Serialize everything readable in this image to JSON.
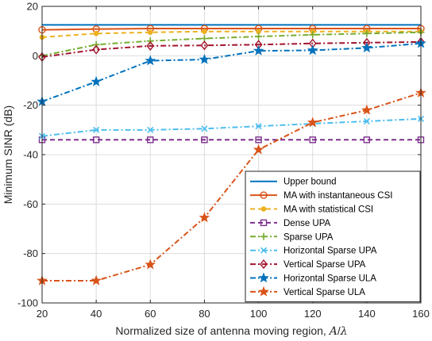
{
  "chart_data": {
    "type": "line",
    "xlabel": "Normalized size of antenna moving region, A/λ",
    "ylabel": "Minimum SINR (dB)",
    "xlim": [
      20,
      160
    ],
    "ylim": [
      -100,
      20
    ],
    "grid": true,
    "legend_position": "bottom-right",
    "x": [
      20,
      40,
      60,
      80,
      100,
      120,
      140,
      160
    ],
    "xticks": [
      "20",
      "40",
      "60",
      "80",
      "100",
      "120",
      "140",
      "160"
    ],
    "yticks": [
      "20",
      "0",
      "-20",
      "-40",
      "-60",
      "-80",
      "-100"
    ],
    "series": [
      {
        "name": "Upper bound",
        "color": "#0072bd",
        "dash": "solid",
        "marker": "none",
        "values": [
          12.5,
          12.5,
          12.5,
          12.5,
          12.5,
          12.5,
          12.5,
          12.5
        ]
      },
      {
        "name": "MA with instantaneous CSI",
        "color": "#d95319",
        "dash": "solid",
        "marker": "circle",
        "values": [
          10.5,
          10.8,
          11.0,
          11.0,
          11.0,
          11.0,
          11.0,
          11.0
        ]
      },
      {
        "name": "MA with statistical CSI",
        "color": "#edb120",
        "dash": "dashed",
        "marker": "dot",
        "values": [
          7.5,
          9.0,
          9.5,
          9.8,
          9.8,
          9.8,
          9.8,
          9.8
        ]
      },
      {
        "name": "Dense UPA",
        "color": "#7e2f8e",
        "dash": "dashed",
        "marker": "square",
        "values": [
          -34,
          -34,
          -34,
          -34,
          -34,
          -34,
          -34,
          -34
        ]
      },
      {
        "name": "Sparse UPA",
        "color": "#77ac30",
        "dash": "dashdot",
        "marker": "plus",
        "values": [
          0,
          4.5,
          6.0,
          7.0,
          7.8,
          8.5,
          9.0,
          9.5
        ]
      },
      {
        "name": "Horizontal Sparse UPA",
        "color": "#4dbeee",
        "dash": "dashdot",
        "marker": "x",
        "values": [
          -32.5,
          -30,
          -30,
          -29.5,
          -28.5,
          -27.5,
          -26.5,
          -25.5
        ]
      },
      {
        "name": "Vertical Sparse UPA",
        "color": "#a2142f",
        "dash": "dashdot",
        "marker": "diamond",
        "values": [
          -0.5,
          2.5,
          4.0,
          4.2,
          4.5,
          5.0,
          5.3,
          5.6
        ]
      },
      {
        "name": "Horizontal Sparse ULA",
        "color": "#0072bd",
        "dash": "dashdot",
        "marker": "star",
        "values": [
          -18.5,
          -10.5,
          -2,
          -1.5,
          2,
          2.2,
          3.2,
          5
        ]
      },
      {
        "name": "Vertical Sparse ULA",
        "color": "#d95319",
        "dash": "dashdot",
        "marker": "star",
        "values": [
          -91,
          -91,
          -84.5,
          -65.5,
          -38,
          -27,
          -22,
          -15
        ]
      }
    ]
  }
}
